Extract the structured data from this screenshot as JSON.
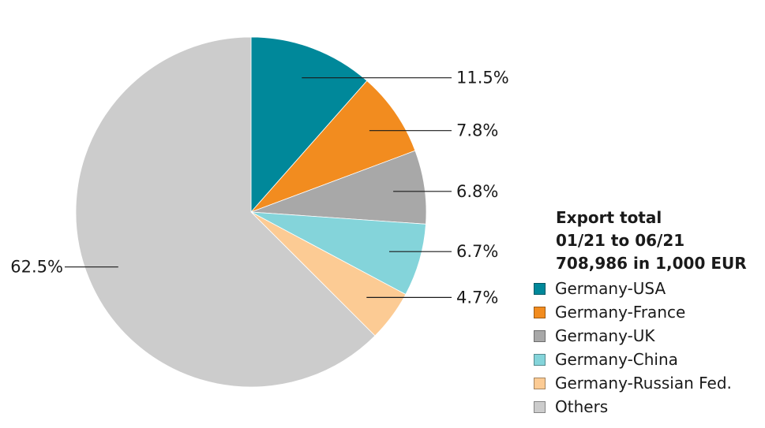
{
  "chart_data": {
    "type": "pie",
    "title": "",
    "legend": {
      "position": "right",
      "title_lines": [
        "Export total",
        "01/21 to 06/21",
        "708,986 in 1,000 EUR"
      ]
    },
    "slices": [
      {
        "name": "Germany-USA",
        "value": 11.5,
        "label": "11.5%",
        "color": "#00889a"
      },
      {
        "name": "Germany-France",
        "value": 7.8,
        "label": "7.8%",
        "color": "#f28c1f"
      },
      {
        "name": "Germany-UK",
        "value": 6.8,
        "label": "6.8%",
        "color": "#a8a8a8"
      },
      {
        "name": "Germany-China",
        "value": 6.7,
        "label": "6.7%",
        "color": "#84d4da"
      },
      {
        "name": "Germany-Russian Fed.",
        "value": 4.7,
        "label": "4.7%",
        "color": "#fccb94"
      },
      {
        "name": "Others",
        "value": 62.5,
        "label": "62.5%",
        "color": "#cccccc"
      }
    ]
  }
}
